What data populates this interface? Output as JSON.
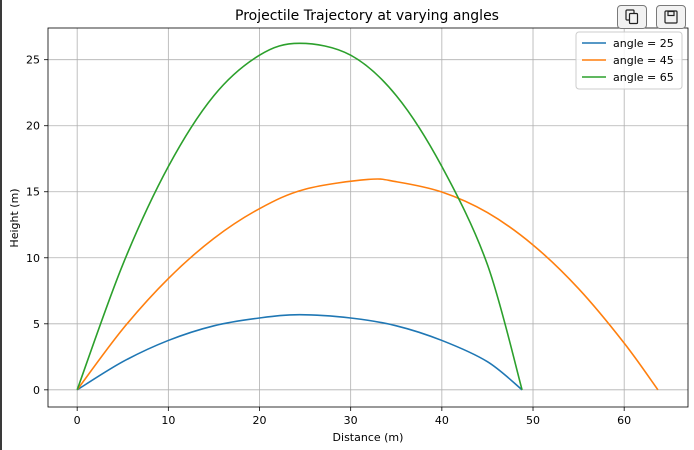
{
  "toolbar": {
    "copy_icon": "copy-icon",
    "save_icon": "save-icon"
  },
  "chart_data": {
    "type": "line",
    "title": "Projectile Trajectory at varying angles",
    "xlabel": "Distance (m)",
    "ylabel": "Height (m)",
    "xlim": [
      -3.2,
      67.0
    ],
    "ylim": [
      -1.3,
      27.4
    ],
    "xticks": [
      0,
      10,
      20,
      30,
      40,
      50,
      60
    ],
    "yticks": [
      0,
      5,
      10,
      15,
      20,
      25
    ],
    "grid": true,
    "legend_position": "top-right",
    "series": [
      {
        "name": "angle = 25",
        "color": "#1f77b4",
        "x": [
          0,
          5,
          10,
          15,
          20,
          24.4,
          30,
          35,
          40,
          45,
          48.8
        ],
        "y": [
          0,
          2.13,
          3.74,
          4.85,
          5.44,
          5.69,
          5.44,
          4.85,
          3.74,
          2.13,
          0
        ]
      },
      {
        "name": "angle = 45",
        "color": "#ff7f0e",
        "x": [
          0,
          5,
          10,
          15,
          20,
          25,
          31.9,
          35,
          40,
          45,
          50,
          55,
          60,
          63.7
        ],
        "y": [
          0,
          4.61,
          8.43,
          11.47,
          13.72,
          15.19,
          15.93,
          15.76,
          14.98,
          13.42,
          10.97,
          7.66,
          3.54,
          0
        ]
      },
      {
        "name": "angle = 65",
        "color": "#2ca02c",
        "x": [
          0,
          5,
          10,
          15,
          20,
          24.4,
          30,
          35,
          40,
          45,
          48.8
        ],
        "y": [
          0,
          9.48,
          16.91,
          22.28,
          25.34,
          26.24,
          25.34,
          22.28,
          16.91,
          9.48,
          0
        ]
      }
    ]
  }
}
